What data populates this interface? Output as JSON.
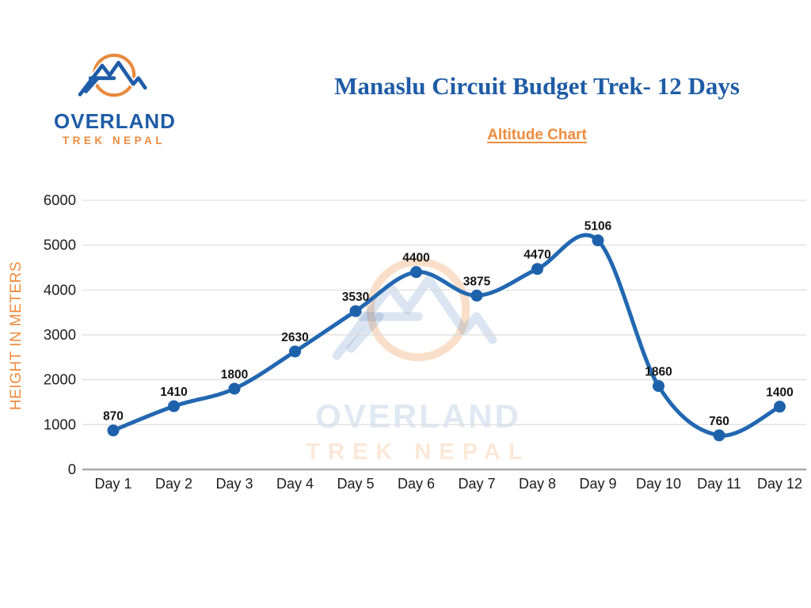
{
  "logo": {
    "line1": "OVERLAND",
    "line2": "TREK NEPAL"
  },
  "header": {
    "title": "Manaslu Circuit Budget Trek- 12 Days",
    "subtitle": "Altitude Chart"
  },
  "watermark": {
    "line1": "OVERLAND",
    "line2": "TREK NEPAL"
  },
  "chart_data": {
    "type": "line",
    "title": "Altitude Chart",
    "categories": [
      "Day 1",
      "Day 2",
      "Day 3",
      "Day 4",
      "Day 5",
      "Day 6",
      "Day 7",
      "Day 8",
      "Day 9",
      "Day 10",
      "Day 11",
      "Day 12"
    ],
    "values": [
      870,
      1410,
      1800,
      2630,
      3530,
      4400,
      3875,
      4470,
      5106,
      1860,
      760,
      1400
    ],
    "xlabel": "",
    "ylabel": "HEIGHT IN METERS",
    "ylim": [
      0,
      6000
    ],
    "ytick_interval": 1000,
    "grid": true,
    "legend": false,
    "smooth": true,
    "data_labels": true,
    "line_color": "#2267b1",
    "marker_color": "#1d61ab",
    "data_label_color": "#141414",
    "tick_label_color": "#1d1d1d",
    "grid_color": "#dcdcdc",
    "axis_line_color": "#a8a8a8",
    "ylabel_color": "#ee8b3e"
  }
}
